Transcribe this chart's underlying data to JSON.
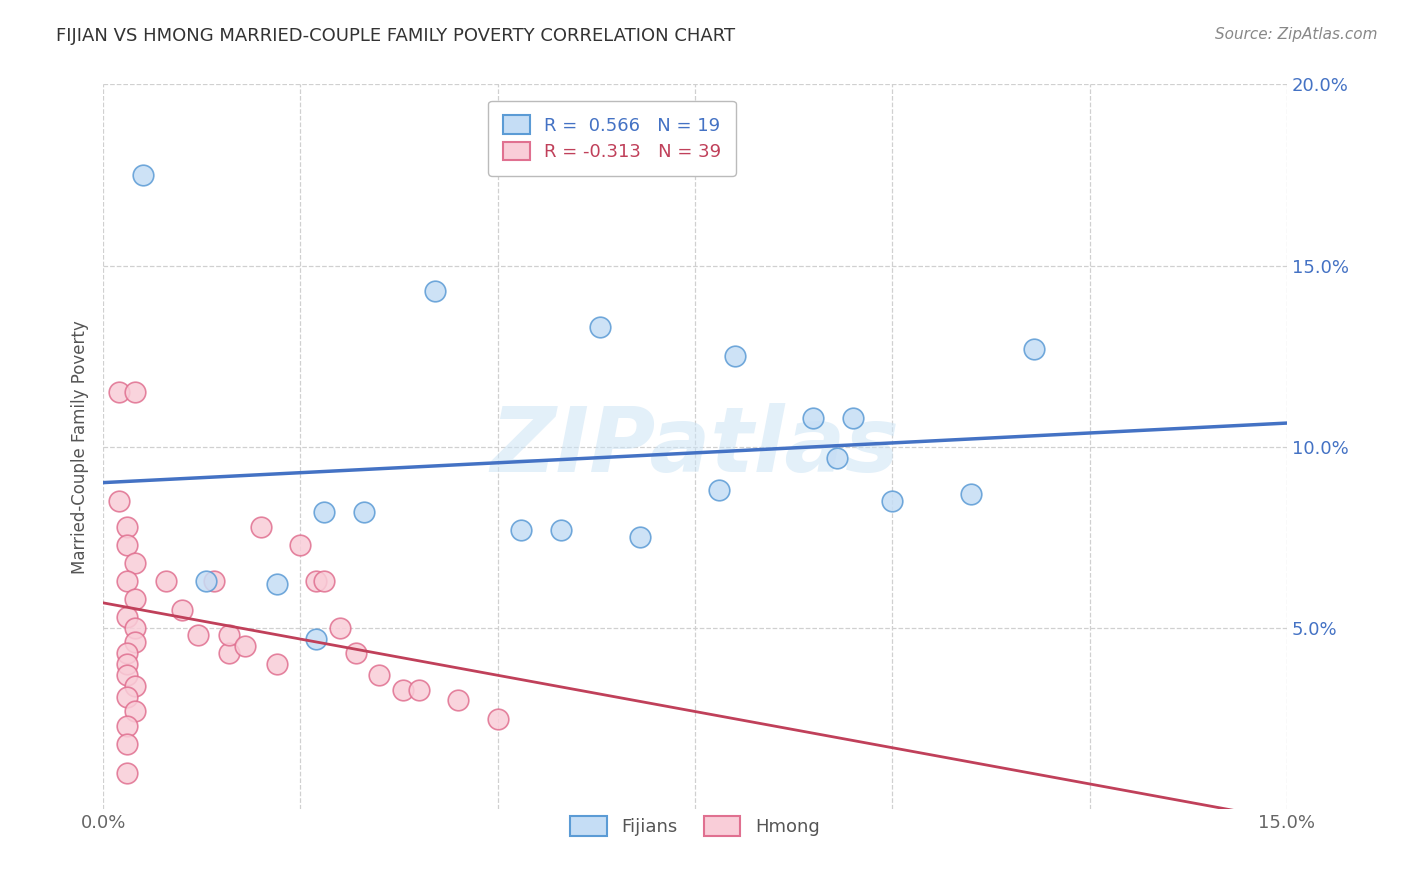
{
  "title": "FIJIAN VS HMONG MARRIED-COUPLE FAMILY POVERTY CORRELATION CHART",
  "source": "Source: ZipAtlas.com",
  "ylabel": "Married-Couple Family Poverty",
  "xlim": [
    0.0,
    0.15
  ],
  "ylim": [
    0.0,
    0.2
  ],
  "fijian_R": 0.566,
  "fijian_N": 19,
  "hmong_R": -0.313,
  "hmong_N": 39,
  "fijian_color": "#c5ddf5",
  "fijian_edge_color": "#5b9bd5",
  "hmong_color": "#f9cdd8",
  "hmong_edge_color": "#e07090",
  "fijian_line_color": "#4472c4",
  "hmong_line_color": "#c0405a",
  "watermark": "ZIPatlas",
  "background_color": "#ffffff",
  "grid_color": "#d0d0d0",
  "ytick_color": "#4472c4",
  "fijian_points": [
    [
      0.005,
      0.175
    ],
    [
      0.042,
      0.143
    ],
    [
      0.028,
      0.082
    ],
    [
      0.033,
      0.082
    ],
    [
      0.063,
      0.133
    ],
    [
      0.053,
      0.077
    ],
    [
      0.058,
      0.077
    ],
    [
      0.068,
      0.075
    ],
    [
      0.078,
      0.088
    ],
    [
      0.08,
      0.125
    ],
    [
      0.09,
      0.108
    ],
    [
      0.095,
      0.108
    ],
    [
      0.093,
      0.097
    ],
    [
      0.1,
      0.085
    ],
    [
      0.11,
      0.087
    ],
    [
      0.118,
      0.127
    ],
    [
      0.013,
      0.063
    ],
    [
      0.022,
      0.062
    ],
    [
      0.027,
      0.047
    ]
  ],
  "hmong_points": [
    [
      0.002,
      0.115
    ],
    [
      0.004,
      0.115
    ],
    [
      0.002,
      0.085
    ],
    [
      0.003,
      0.078
    ],
    [
      0.003,
      0.073
    ],
    [
      0.004,
      0.068
    ],
    [
      0.003,
      0.063
    ],
    [
      0.004,
      0.058
    ],
    [
      0.003,
      0.053
    ],
    [
      0.004,
      0.05
    ],
    [
      0.004,
      0.046
    ],
    [
      0.003,
      0.043
    ],
    [
      0.003,
      0.04
    ],
    [
      0.003,
      0.037
    ],
    [
      0.004,
      0.034
    ],
    [
      0.003,
      0.031
    ],
    [
      0.004,
      0.027
    ],
    [
      0.003,
      0.023
    ],
    [
      0.003,
      0.018
    ],
    [
      0.003,
      0.01
    ],
    [
      0.008,
      0.063
    ],
    [
      0.01,
      0.055
    ],
    [
      0.012,
      0.048
    ],
    [
      0.014,
      0.063
    ],
    [
      0.016,
      0.043
    ],
    [
      0.016,
      0.048
    ],
    [
      0.018,
      0.045
    ],
    [
      0.02,
      0.078
    ],
    [
      0.022,
      0.04
    ],
    [
      0.025,
      0.073
    ],
    [
      0.027,
      0.063
    ],
    [
      0.028,
      0.063
    ],
    [
      0.03,
      0.05
    ],
    [
      0.032,
      0.043
    ],
    [
      0.035,
      0.037
    ],
    [
      0.038,
      0.033
    ],
    [
      0.04,
      0.033
    ],
    [
      0.045,
      0.03
    ],
    [
      0.05,
      0.025
    ]
  ]
}
